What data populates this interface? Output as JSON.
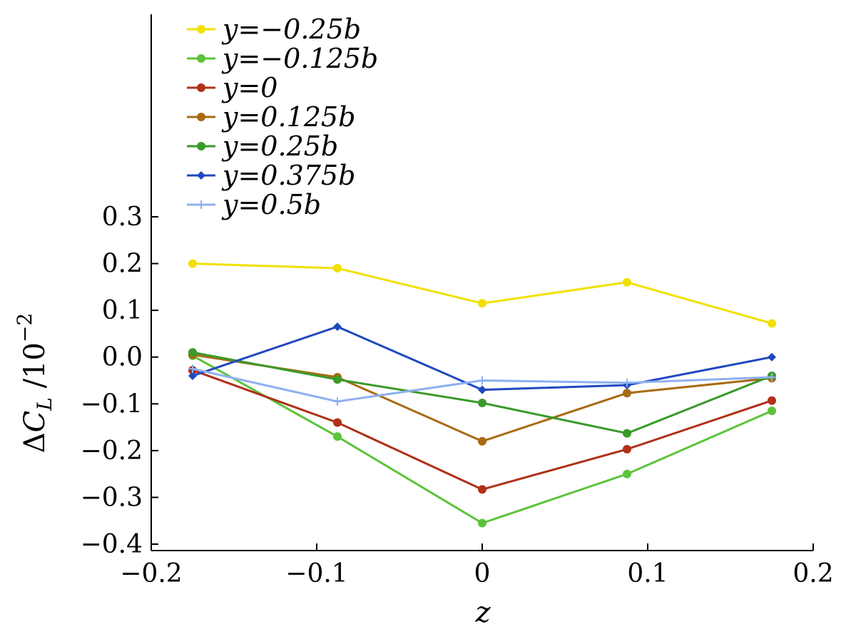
{
  "chart_data": {
    "type": "line",
    "xlabel": "z",
    "ylabel": "ΔC_L /10^-2",
    "ylabel_parts": {
      "delta": "Δ",
      "c": "C",
      "sub": "L",
      "tail": " /10",
      "exp": "−2"
    },
    "xlim": [
      -0.2,
      0.2
    ],
    "ylim": [
      -0.4,
      0.3
    ],
    "x": [
      -0.175,
      -0.0875,
      0,
      0.0875,
      0.175
    ],
    "xticks": [
      -0.2,
      -0.1,
      0,
      0.1,
      0.2
    ],
    "xtick_labels": [
      "−0.2",
      "−0.1",
      "0",
      "0.1",
      "0.2"
    ],
    "yticks": [
      0.3,
      0.2,
      0.1,
      0.0,
      -0.1,
      -0.2,
      -0.3,
      -0.4
    ],
    "ytick_labels": [
      "0.3",
      "0.2",
      "0.1",
      "0.0",
      "−0.1",
      "−0.2",
      "−0.3",
      "−0.4"
    ],
    "legend_position": "top-left",
    "grid": false,
    "series": [
      {
        "name": "y=−0.25b",
        "color": "#f2e000",
        "marker": "circle",
        "values": [
          0.2,
          0.19,
          0.115,
          0.16,
          0.072
        ]
      },
      {
        "name": "y=−0.125b",
        "color": "#5cc43a",
        "marker": "circle",
        "values": [
          0.003,
          -0.17,
          -0.355,
          -0.25,
          -0.115
        ]
      },
      {
        "name": "y=0",
        "color": "#b03018",
        "marker": "circle",
        "values": [
          -0.028,
          -0.14,
          -0.283,
          -0.197,
          -0.093
        ]
      },
      {
        "name": "y=0.125b",
        "color": "#a86a10",
        "marker": "circle",
        "values": [
          0.005,
          -0.043,
          -0.18,
          -0.077,
          -0.045
        ]
      },
      {
        "name": "y=0.25b",
        "color": "#3a9a2a",
        "marker": "circle",
        "values": [
          0.01,
          -0.048,
          -0.098,
          -0.163,
          -0.04
        ]
      },
      {
        "name": "y=0.375b",
        "color": "#2048c0",
        "marker": "diamond",
        "values": [
          -0.04,
          0.065,
          -0.07,
          -0.06,
          0.0
        ]
      },
      {
        "name": "y=0.5b",
        "color": "#8fb0f0",
        "marker": "plus",
        "values": [
          -0.025,
          -0.095,
          -0.05,
          -0.055,
          -0.043
        ]
      }
    ]
  }
}
